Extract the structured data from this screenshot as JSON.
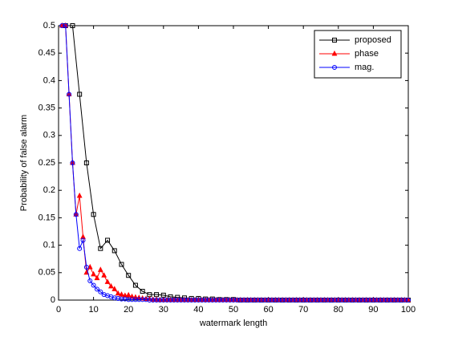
{
  "chart_data": {
    "type": "line",
    "xlabel": "watermark length",
    "ylabel": "Probability of false alarm",
    "xlim": [
      0,
      100
    ],
    "ylim": [
      0,
      0.5
    ],
    "xticks": [
      0,
      10,
      20,
      30,
      40,
      50,
      60,
      70,
      80,
      90,
      100
    ],
    "yticks": [
      0,
      0.05,
      0.1,
      0.15,
      0.2,
      0.25,
      0.3,
      0.35,
      0.4,
      0.45,
      0.5
    ],
    "legend": "upper right",
    "series": [
      {
        "name": "proposed",
        "color": "#000000",
        "marker": "square",
        "x": [
          2,
          4,
          6,
          8,
          10,
          12,
          14,
          16,
          18,
          20,
          22,
          24,
          26,
          28,
          30,
          32,
          34,
          36,
          38,
          40,
          42,
          44,
          46,
          48,
          50,
          52,
          54,
          56,
          58,
          60,
          62,
          64,
          66,
          68,
          70,
          72,
          74,
          76,
          78,
          80,
          82,
          84,
          86,
          88,
          90,
          92,
          94,
          96,
          98,
          100
        ],
        "values": [
          0.5,
          0.5,
          0.375,
          0.25,
          0.156,
          0.094,
          0.109,
          0.09,
          0.065,
          0.045,
          0.027,
          0.016,
          0.01,
          0.01,
          0.009,
          0.006,
          0.005,
          0.004,
          0.003,
          0.003,
          0.002,
          0.002,
          0.001,
          0.001,
          0.001,
          0,
          0,
          0,
          0,
          0,
          0,
          0,
          0,
          0,
          0,
          0,
          0,
          0,
          0,
          0,
          0,
          0,
          0,
          0,
          0,
          0,
          0,
          0,
          0,
          0
        ]
      },
      {
        "name": "phase",
        "color": "#ff0000",
        "marker": "triangle",
        "x": [
          1,
          2,
          3,
          4,
          5,
          6,
          7,
          8,
          9,
          10,
          11,
          12,
          13,
          14,
          15,
          16,
          17,
          18,
          19,
          20,
          21,
          22,
          23,
          24,
          25,
          26,
          27,
          28,
          29,
          30,
          31,
          32,
          33,
          34,
          35,
          36,
          37,
          38,
          39,
          40,
          41,
          42,
          43,
          44,
          45,
          46,
          47,
          48,
          49,
          50,
          51,
          52,
          53,
          54,
          55,
          56,
          57,
          58,
          59,
          60,
          61,
          62,
          63,
          64,
          65,
          66,
          67,
          68,
          69,
          70,
          71,
          72,
          73,
          74,
          75,
          76,
          77,
          78,
          79,
          80,
          81,
          82,
          83,
          84,
          85,
          86,
          87,
          88,
          89,
          90,
          91,
          92,
          93,
          94,
          95,
          96,
          97,
          98,
          99,
          100
        ],
        "values": [
          0.5,
          0.5,
          0.375,
          0.25,
          0.156,
          0.19,
          0.115,
          0.05,
          0.06,
          0.047,
          0.04,
          0.055,
          0.045,
          0.033,
          0.025,
          0.02,
          0.012,
          0.01,
          0.008,
          0.009,
          0.006,
          0.005,
          0.004,
          0.003,
          0.002,
          0.002,
          0.001,
          0.001,
          0,
          0,
          0,
          0,
          0,
          0,
          0,
          0,
          0,
          0,
          0,
          0,
          0,
          0,
          0,
          0,
          0,
          0,
          0,
          0,
          0,
          0,
          0,
          0,
          0,
          0,
          0,
          0,
          0,
          0,
          0,
          0,
          0,
          0,
          0,
          0,
          0,
          0,
          0,
          0,
          0,
          0,
          0,
          0,
          0,
          0,
          0,
          0,
          0,
          0,
          0,
          0,
          0,
          0,
          0,
          0,
          0,
          0,
          0,
          0,
          0,
          0,
          0,
          0,
          0,
          0,
          0,
          0,
          0,
          0,
          0,
          0
        ]
      },
      {
        "name": "mag.",
        "color": "#0000ff",
        "marker": "circle",
        "x": [
          1,
          2,
          3,
          4,
          5,
          6,
          7,
          8,
          9,
          10,
          11,
          12,
          13,
          14,
          15,
          16,
          17,
          18,
          19,
          20,
          21,
          22,
          23,
          24,
          25,
          26,
          27,
          28,
          29,
          30,
          31,
          32,
          33,
          34,
          35,
          36,
          37,
          38,
          39,
          40,
          41,
          42,
          43,
          44,
          45,
          46,
          47,
          48,
          49,
          50,
          51,
          52,
          53,
          54,
          55,
          56,
          57,
          58,
          59,
          60,
          61,
          62,
          63,
          64,
          65,
          66,
          67,
          68,
          69,
          70,
          71,
          72,
          73,
          74,
          75,
          76,
          77,
          78,
          79,
          80,
          81,
          82,
          83,
          84,
          85,
          86,
          87,
          88,
          89,
          90,
          91,
          92,
          93,
          94,
          95,
          96,
          97,
          98,
          99,
          100
        ],
        "values": [
          0.5,
          0.5,
          0.375,
          0.25,
          0.156,
          0.094,
          0.109,
          0.06,
          0.035,
          0.027,
          0.02,
          0.015,
          0.01,
          0.008,
          0.006,
          0.004,
          0.003,
          0.002,
          0.002,
          0.001,
          0.001,
          0.001,
          0.001,
          0.001,
          0.001,
          0,
          0,
          0,
          0,
          0,
          0,
          0,
          0,
          0,
          0,
          0,
          0,
          0,
          0,
          0,
          0,
          0,
          0,
          0,
          0,
          0,
          0,
          0,
          0,
          0,
          0,
          0,
          0,
          0,
          0,
          0,
          0,
          0,
          0,
          0,
          0,
          0,
          0,
          0,
          0,
          0,
          0,
          0,
          0,
          0,
          0,
          0,
          0,
          0,
          0,
          0,
          0,
          0,
          0,
          0,
          0,
          0,
          0,
          0,
          0,
          0,
          0,
          0,
          0,
          0,
          0,
          0,
          0,
          0,
          0,
          0,
          0,
          0,
          0,
          0
        ]
      }
    ]
  }
}
